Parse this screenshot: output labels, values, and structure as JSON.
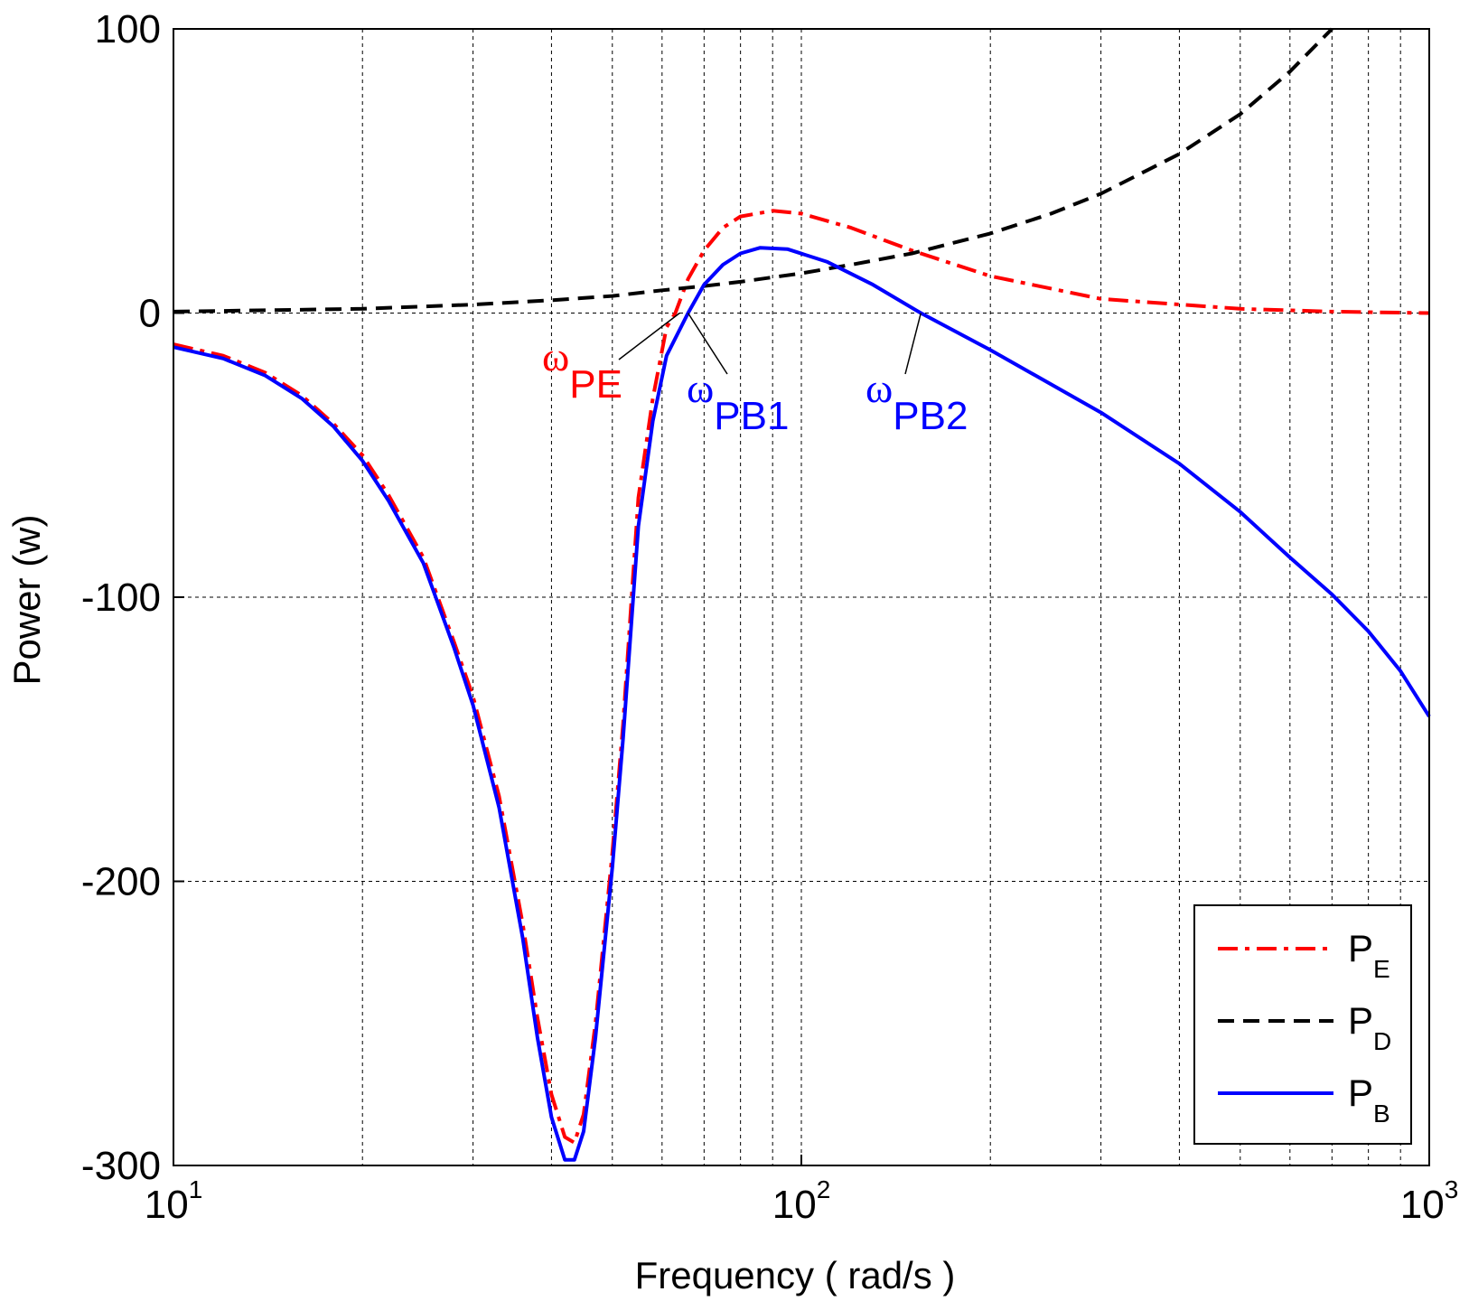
{
  "chart_data": {
    "type": "line",
    "xscale": "log",
    "xlabel": "Frequency ( rad/s )",
    "ylabel": "Power (w)",
    "xlim": [
      10,
      1000
    ],
    "ylim": [
      -300,
      100
    ],
    "grid": true,
    "x_ticks": [
      {
        "value": 10,
        "base": "10",
        "exp": "1"
      },
      {
        "value": 100,
        "base": "10",
        "exp": "2"
      },
      {
        "value": 1000,
        "base": "10",
        "exp": "3"
      }
    ],
    "y_ticks": [
      {
        "value": 100,
        "label": "100"
      },
      {
        "value": 0,
        "label": "0"
      },
      {
        "value": -100,
        "label": "-100"
      },
      {
        "value": -200,
        "label": "-200"
      },
      {
        "value": -300,
        "label": "-300"
      }
    ],
    "legend_position": "bottom-right",
    "series": [
      {
        "name": "P_E",
        "label_main": "P",
        "label_sub": "E",
        "color": "#ff0000",
        "dash": "dashdot",
        "points": [
          [
            10,
            -11
          ],
          [
            12,
            -15
          ],
          [
            14,
            -21
          ],
          [
            16,
            -29
          ],
          [
            18,
            -39
          ],
          [
            20,
            -50
          ],
          [
            22,
            -64
          ],
          [
            25,
            -86
          ],
          [
            28,
            -116
          ],
          [
            30,
            -135
          ],
          [
            33,
            -170
          ],
          [
            36,
            -215
          ],
          [
            38,
            -248
          ],
          [
            40,
            -275
          ],
          [
            42,
            -290
          ],
          [
            43.5,
            -292
          ],
          [
            45,
            -282
          ],
          [
            47,
            -250
          ],
          [
            50,
            -190
          ],
          [
            52,
            -145
          ],
          [
            55,
            -65
          ],
          [
            58,
            -30
          ],
          [
            61,
            -5
          ],
          [
            63,
            0
          ],
          [
            66,
            12
          ],
          [
            70,
            22
          ],
          [
            75,
            30
          ],
          [
            80,
            34
          ],
          [
            90,
            36
          ],
          [
            100,
            35
          ],
          [
            120,
            30
          ],
          [
            150,
            22
          ],
          [
            200,
            13
          ],
          [
            300,
            5
          ],
          [
            500,
            1.5
          ],
          [
            700,
            0.5
          ],
          [
            1000,
            0
          ]
        ]
      },
      {
        "name": "P_D",
        "label_main": "P",
        "label_sub": "D",
        "color": "#000000",
        "dash": "dashed",
        "points": [
          [
            10,
            0.5
          ],
          [
            20,
            1.5
          ],
          [
            30,
            3
          ],
          [
            40,
            4.5
          ],
          [
            50,
            6
          ],
          [
            60,
            8
          ],
          [
            70,
            9.5
          ],
          [
            80,
            11
          ],
          [
            100,
            14
          ],
          [
            120,
            17
          ],
          [
            150,
            21
          ],
          [
            200,
            28
          ],
          [
            250,
            35
          ],
          [
            300,
            42
          ],
          [
            400,
            56
          ],
          [
            500,
            70
          ],
          [
            600,
            85
          ],
          [
            700,
            100
          ]
        ]
      },
      {
        "name": "P_B",
        "label_main": "P",
        "label_sub": "B",
        "color": "#0000ff",
        "dash": "solid",
        "points": [
          [
            10,
            -12
          ],
          [
            12,
            -16
          ],
          [
            14,
            -22
          ],
          [
            16,
            -30
          ],
          [
            18,
            -40
          ],
          [
            20,
            -52
          ],
          [
            22,
            -66
          ],
          [
            25,
            -88
          ],
          [
            28,
            -118
          ],
          [
            30,
            -138
          ],
          [
            33,
            -174
          ],
          [
            36,
            -220
          ],
          [
            38,
            -255
          ],
          [
            40,
            -283
          ],
          [
            42,
            -298
          ],
          [
            43.5,
            -298
          ],
          [
            45,
            -288
          ],
          [
            47,
            -255
          ],
          [
            50,
            -195
          ],
          [
            52,
            -150
          ],
          [
            55,
            -75
          ],
          [
            58,
            -38
          ],
          [
            61,
            -15
          ],
          [
            66,
            0
          ],
          [
            70,
            10
          ],
          [
            75,
            17
          ],
          [
            80,
            21
          ],
          [
            86,
            23
          ],
          [
            95,
            22.5
          ],
          [
            110,
            18
          ],
          [
            130,
            10
          ],
          [
            155,
            0
          ],
          [
            200,
            -13
          ],
          [
            300,
            -35
          ],
          [
            400,
            -53
          ],
          [
            500,
            -70
          ],
          [
            600,
            -86
          ],
          [
            700,
            -99
          ],
          [
            800,
            -112
          ],
          [
            900,
            -126
          ],
          [
            1000,
            -142
          ]
        ]
      }
    ],
    "annotations": [
      {
        "symbol": "ω",
        "sub": "PE",
        "color": "#ff0000",
        "target_x": 64,
        "target_y": 0
      },
      {
        "symbol": "ω",
        "sub": "PB1",
        "color": "#0000ff",
        "target_x": 66,
        "target_y": 0
      },
      {
        "symbol": "ω",
        "sub": "PB2",
        "color": "#0000ff",
        "target_x": 155,
        "target_y": 0
      }
    ]
  }
}
